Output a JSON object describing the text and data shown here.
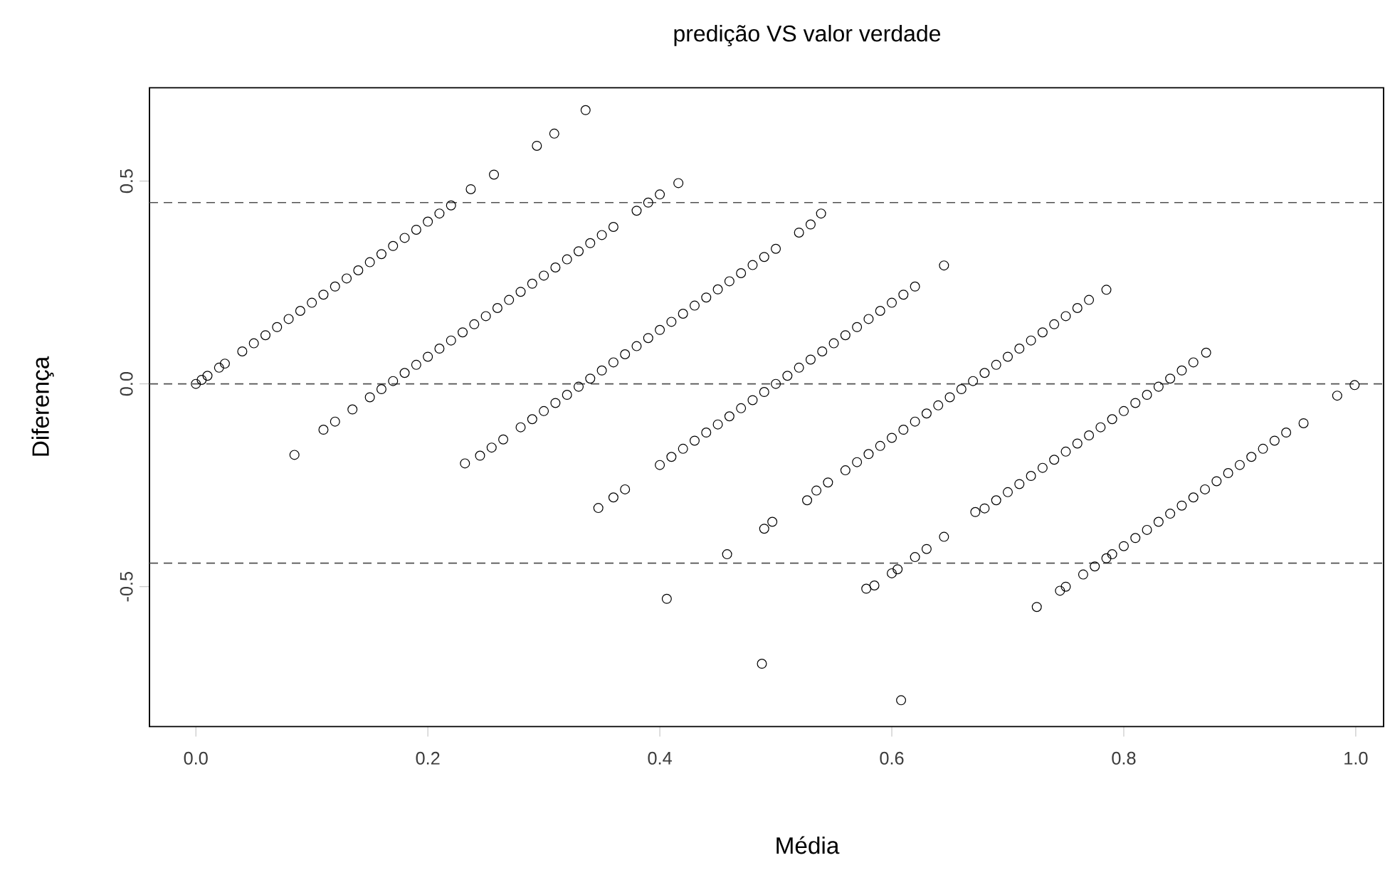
{
  "chart_data": {
    "type": "scatter",
    "title": "predição VS valor verdade",
    "xlabel": "Média",
    "ylabel": "Diferença",
    "marker": "circle",
    "xlim": [
      -0.04,
      1.024
    ],
    "ylim": [
      -0.845,
      0.73
    ],
    "xticks": [
      {
        "value": 0,
        "label": "0.0"
      },
      {
        "value": 0.2,
        "label": "0.2"
      },
      {
        "value": 0.4,
        "label": "0.4"
      },
      {
        "value": 0.6,
        "label": "0.6"
      },
      {
        "value": 0.8,
        "label": "0.8"
      },
      {
        "value": 1,
        "label": "1.0"
      }
    ],
    "yticks": [
      {
        "value": -0.5,
        "label": "-0.5"
      },
      {
        "value": 0,
        "label": "0.0"
      },
      {
        "value": 0.5,
        "label": "0.5"
      }
    ],
    "ref_lines": [
      {
        "axis": "y",
        "value": 0.447,
        "color": "#505050",
        "line_style": "dashed"
      },
      {
        "axis": "y",
        "value": 0,
        "color": "#505050",
        "line_style": "dashed"
      },
      {
        "axis": "y",
        "value": -0.442,
        "color": "#505050",
        "line_style": "dashed"
      }
    ],
    "series": [
      {
        "color": "#000000",
        "x": [
          0,
          0.005,
          0.01,
          0.02,
          0.025,
          0.04,
          0.05,
          0.06,
          0.07,
          0.08,
          0.09,
          0.1,
          0.11,
          0.12,
          0.13,
          0.14,
          0.15,
          0.16,
          0.17,
          0.18,
          0.19,
          0.2,
          0.21,
          0.22,
          0.237,
          0.257,
          0.294,
          0.309,
          0.336
        ],
        "values": [
          0,
          0.01,
          0.02,
          0.04,
          0.05,
          0.08,
          0.1,
          0.12,
          0.14,
          0.16,
          0.18,
          0.2,
          0.22,
          0.24,
          0.26,
          0.28,
          0.3,
          0.32,
          0.34,
          0.36,
          0.38,
          0.4,
          0.42,
          0.44,
          0.48,
          0.516,
          0.587,
          0.617,
          0.675
        ]
      },
      {
        "color": "#000000",
        "x": [
          0.085,
          0.11,
          0.12,
          0.135,
          0.15,
          0.16,
          0.17,
          0.18,
          0.19,
          0.2,
          0.21,
          0.22,
          0.23,
          0.24,
          0.25,
          0.26,
          0.27,
          0.28,
          0.29,
          0.3,
          0.31,
          0.32,
          0.33,
          0.34,
          0.35,
          0.36,
          0.38,
          0.39,
          0.4,
          0.416
        ],
        "values": [
          -0.175,
          -0.113,
          -0.093,
          -0.063,
          -0.033,
          -0.013,
          0.007,
          0.027,
          0.047,
          0.067,
          0.087,
          0.107,
          0.127,
          0.147,
          0.167,
          0.187,
          0.207,
          0.227,
          0.247,
          0.267,
          0.287,
          0.307,
          0.327,
          0.347,
          0.367,
          0.387,
          0.427,
          0.447,
          0.467,
          0.495
        ]
      },
      {
        "color": "#000000",
        "x": [
          0.232,
          0.245,
          0.255,
          0.265,
          0.28,
          0.29,
          0.3,
          0.31,
          0.32,
          0.33,
          0.34,
          0.35,
          0.36,
          0.37,
          0.38,
          0.39,
          0.4,
          0.41,
          0.42,
          0.43,
          0.44,
          0.45,
          0.46,
          0.47,
          0.48,
          0.49,
          0.5,
          0.52,
          0.53,
          0.539
        ],
        "values": [
          -0.196,
          -0.177,
          -0.157,
          -0.137,
          -0.107,
          -0.087,
          -0.067,
          -0.047,
          -0.027,
          -0.007,
          0.013,
          0.033,
          0.053,
          0.073,
          0.093,
          0.113,
          0.133,
          0.153,
          0.173,
          0.193,
          0.213,
          0.233,
          0.253,
          0.273,
          0.293,
          0.313,
          0.333,
          0.373,
          0.393,
          0.42
        ]
      },
      {
        "color": "#000000",
        "x": [
          0.347,
          0.36,
          0.37,
          0.4,
          0.41,
          0.42,
          0.43,
          0.44,
          0.45,
          0.46,
          0.47,
          0.48,
          0.49,
          0.5,
          0.51,
          0.52,
          0.53,
          0.54,
          0.55,
          0.56,
          0.57,
          0.58,
          0.59,
          0.6,
          0.61,
          0.62,
          0.645
        ],
        "values": [
          -0.306,
          -0.28,
          -0.26,
          -0.2,
          -0.18,
          -0.16,
          -0.14,
          -0.12,
          -0.1,
          -0.08,
          -0.06,
          -0.04,
          -0.02,
          0,
          0.02,
          0.04,
          0.06,
          0.08,
          0.1,
          0.12,
          0.14,
          0.16,
          0.18,
          0.2,
          0.22,
          0.24,
          0.292
        ]
      },
      {
        "color": "#000000",
        "x": [
          0.406,
          0.458,
          0.49,
          0.497,
          0.527,
          0.535,
          0.545,
          0.56,
          0.57,
          0.58,
          0.59,
          0.6,
          0.61,
          0.62,
          0.63,
          0.64,
          0.65,
          0.66,
          0.67,
          0.68,
          0.69,
          0.7,
          0.71,
          0.72,
          0.73,
          0.74,
          0.75,
          0.76,
          0.77,
          0.785
        ],
        "values": [
          -0.53,
          -0.42,
          -0.357,
          -0.34,
          -0.287,
          -0.263,
          -0.243,
          -0.213,
          -0.193,
          -0.173,
          -0.153,
          -0.133,
          -0.113,
          -0.093,
          -0.073,
          -0.053,
          -0.033,
          -0.013,
          0.007,
          0.027,
          0.047,
          0.067,
          0.087,
          0.107,
          0.127,
          0.147,
          0.167,
          0.187,
          0.207,
          0.232
        ]
      },
      {
        "color": "#000000",
        "x": [
          0.488,
          0.578,
          0.585,
          0.6,
          0.605,
          0.62,
          0.63,
          0.645,
          0.672,
          0.68,
          0.69,
          0.7,
          0.71,
          0.72,
          0.73,
          0.74,
          0.75,
          0.76,
          0.77,
          0.78,
          0.79,
          0.8,
          0.81,
          0.82,
          0.83,
          0.84,
          0.85,
          0.86,
          0.871
        ],
        "values": [
          -0.69,
          -0.505,
          -0.497,
          -0.467,
          -0.457,
          -0.427,
          -0.407,
          -0.377,
          -0.316,
          -0.307,
          -0.287,
          -0.267,
          -0.247,
          -0.227,
          -0.207,
          -0.187,
          -0.167,
          -0.147,
          -0.127,
          -0.107,
          -0.087,
          -0.067,
          -0.047,
          -0.027,
          -0.007,
          0.013,
          0.033,
          0.053,
          0.077
        ]
      },
      {
        "color": "#000000",
        "x": [
          0.608,
          0.725,
          0.745,
          0.75,
          0.765,
          0.775,
          0.785,
          0.79,
          0.8,
          0.81,
          0.82,
          0.83,
          0.84,
          0.85,
          0.86,
          0.87,
          0.88,
          0.89,
          0.9,
          0.91,
          0.92,
          0.93,
          0.94,
          0.955,
          0.984,
          0.999
        ],
        "values": [
          -0.78,
          -0.55,
          -0.51,
          -0.5,
          -0.47,
          -0.45,
          -0.43,
          -0.42,
          -0.4,
          -0.38,
          -0.36,
          -0.34,
          -0.32,
          -0.3,
          -0.28,
          -0.26,
          -0.24,
          -0.22,
          -0.2,
          -0.18,
          -0.16,
          -0.14,
          -0.12,
          -0.097,
          -0.029,
          -0.003
        ]
      }
    ]
  }
}
